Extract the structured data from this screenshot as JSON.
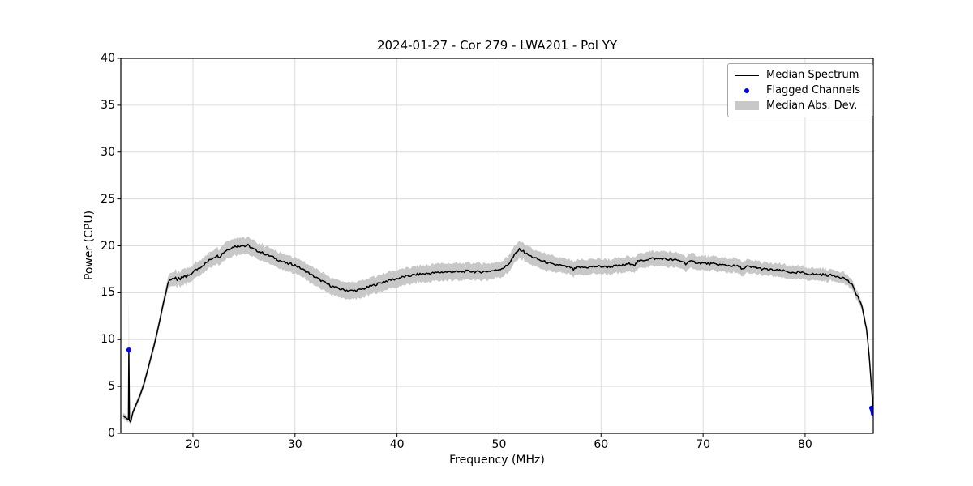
{
  "colors": {
    "line": "#000000",
    "band": "#c8c8c8",
    "flagged": "#0000ff",
    "grid": "#dcdcdc",
    "frame": "#000000",
    "background": "#ffffff",
    "legend_border": "#a6a6a6"
  },
  "chart_data": {
    "type": "line",
    "title": "2024-01-27 - Cor 279 - LWA201 - Pol YY",
    "xlabel": "Frequency (MHz)",
    "ylabel": "Power (CPU)",
    "xlim": [
      12.93,
      86.68
    ],
    "ylim": [
      0,
      40
    ],
    "x_ticks": [
      20,
      30,
      40,
      50,
      60,
      70,
      80
    ],
    "y_ticks": [
      0,
      5,
      10,
      15,
      20,
      25,
      30,
      35,
      40
    ],
    "grid": true,
    "noise_amplitude": 0.13,
    "legend": {
      "position": "upper right",
      "entries": [
        {
          "label": "Median Spectrum",
          "type": "line",
          "color": "#000000"
        },
        {
          "label": "Flagged Channels",
          "type": "dot",
          "color": "#0000ff"
        },
        {
          "label": "Median Abs. Dev.",
          "type": "patch",
          "color": "#c8c8c8"
        }
      ]
    },
    "series": [
      {
        "name": "Median Spectrum",
        "color": "#000000",
        "point_format": [
          "freq_mhz",
          "power_cpu",
          "median_abs_dev"
        ],
        "points": [
          [
            13.15,
            1.9,
            0.3
          ],
          [
            13.3,
            1.75,
            0.3
          ],
          [
            13.45,
            1.65,
            0.3
          ],
          [
            13.6,
            1.5,
            0.3
          ],
          [
            13.68,
            1.45,
            0.3
          ],
          [
            13.72,
            8.8,
            6.5
          ],
          [
            13.78,
            1.35,
            0.3
          ],
          [
            13.9,
            1.2,
            0.3
          ],
          [
            14.1,
            2.2,
            0.35
          ],
          [
            14.4,
            3.0,
            0.35
          ],
          [
            14.8,
            4.0,
            0.4
          ],
          [
            15.2,
            5.3,
            0.4
          ],
          [
            15.6,
            6.9,
            0.45
          ],
          [
            16.0,
            8.6,
            0.45
          ],
          [
            16.2,
            9.4,
            0.5
          ],
          [
            16.5,
            10.8,
            0.5
          ],
          [
            16.8,
            12.3,
            0.5
          ],
          [
            17.1,
            13.9,
            0.55
          ],
          [
            17.35,
            15.0,
            0.6
          ],
          [
            17.55,
            16.0,
            0.65
          ],
          [
            17.7,
            16.35,
            0.7
          ],
          [
            17.85,
            16.45,
            0.75
          ],
          [
            18.0,
            16.55,
            0.75
          ],
          [
            18.15,
            16.3,
            0.75
          ],
          [
            18.3,
            16.6,
            0.8
          ],
          [
            18.45,
            16.35,
            0.8
          ],
          [
            18.6,
            16.65,
            0.8
          ],
          [
            18.75,
            16.45,
            0.8
          ],
          [
            18.9,
            16.7,
            0.8
          ],
          [
            19.05,
            16.5,
            0.8
          ],
          [
            19.2,
            16.75,
            0.8
          ],
          [
            19.35,
            16.6,
            0.8
          ],
          [
            19.5,
            16.85,
            0.8
          ],
          [
            19.7,
            16.8,
            0.8
          ],
          [
            19.85,
            17.0,
            0.8
          ],
          [
            20.0,
            17.25,
            0.8
          ],
          [
            20.4,
            17.5,
            0.8
          ],
          [
            20.8,
            17.8,
            0.8
          ],
          [
            21.2,
            18.1,
            0.8
          ],
          [
            21.6,
            18.45,
            0.85
          ],
          [
            22.0,
            18.75,
            0.85
          ],
          [
            22.3,
            18.95,
            0.85
          ],
          [
            22.6,
            18.85,
            0.85
          ],
          [
            23.0,
            19.3,
            0.9
          ],
          [
            23.3,
            19.55,
            0.9
          ],
          [
            23.6,
            19.7,
            0.9
          ],
          [
            23.9,
            19.85,
            0.9
          ],
          [
            24.2,
            20.0,
            0.9
          ],
          [
            24.5,
            19.95,
            0.9
          ],
          [
            24.8,
            20.1,
            0.9
          ],
          [
            25.1,
            19.95,
            0.9
          ],
          [
            25.4,
            20.05,
            0.9
          ],
          [
            25.7,
            19.8,
            0.9
          ],
          [
            26.0,
            19.6,
            0.9
          ],
          [
            26.4,
            19.45,
            0.9
          ],
          [
            26.8,
            19.25,
            0.9
          ],
          [
            27.2,
            19.05,
            0.85
          ],
          [
            27.6,
            18.9,
            0.85
          ],
          [
            28.0,
            18.7,
            0.85
          ],
          [
            28.4,
            18.5,
            0.85
          ],
          [
            28.8,
            18.3,
            0.85
          ],
          [
            29.2,
            18.1,
            0.85
          ],
          [
            29.6,
            18.05,
            0.85
          ],
          [
            30.0,
            17.95,
            0.85
          ],
          [
            30.4,
            17.7,
            0.85
          ],
          [
            30.8,
            17.45,
            0.85
          ],
          [
            31.2,
            17.2,
            0.85
          ],
          [
            31.6,
            16.9,
            0.9
          ],
          [
            32.0,
            16.65,
            0.9
          ],
          [
            32.4,
            16.4,
            0.9
          ],
          [
            32.8,
            16.15,
            0.9
          ],
          [
            33.2,
            15.9,
            0.9
          ],
          [
            33.6,
            15.7,
            0.9
          ],
          [
            34.0,
            15.55,
            0.9
          ],
          [
            34.4,
            15.4,
            0.9
          ],
          [
            34.8,
            15.3,
            0.9
          ],
          [
            35.2,
            15.25,
            0.9
          ],
          [
            35.6,
            15.2,
            0.9
          ],
          [
            36.0,
            15.25,
            0.9
          ],
          [
            36.4,
            15.3,
            0.9
          ],
          [
            36.8,
            15.45,
            0.9
          ],
          [
            37.2,
            15.6,
            0.9
          ],
          [
            37.6,
            15.75,
            0.9
          ],
          [
            38.0,
            15.9,
            0.9
          ],
          [
            38.4,
            16.05,
            0.9
          ],
          [
            38.8,
            16.2,
            0.9
          ],
          [
            39.2,
            16.3,
            0.9
          ],
          [
            39.6,
            16.4,
            0.9
          ],
          [
            40.0,
            16.5,
            0.9
          ],
          [
            40.5,
            16.65,
            0.9
          ],
          [
            41.0,
            16.75,
            0.9
          ],
          [
            41.5,
            16.85,
            0.9
          ],
          [
            42.0,
            16.95,
            0.9
          ],
          [
            42.5,
            17.0,
            0.9
          ],
          [
            43.0,
            17.05,
            0.9
          ],
          [
            43.5,
            17.1,
            0.9
          ],
          [
            44.0,
            17.15,
            0.9
          ],
          [
            44.5,
            17.2,
            0.9
          ],
          [
            45.0,
            17.2,
            0.9
          ],
          [
            45.5,
            17.25,
            0.9
          ],
          [
            46.0,
            17.2,
            0.9
          ],
          [
            46.5,
            17.25,
            0.9
          ],
          [
            47.0,
            17.3,
            0.9
          ],
          [
            47.5,
            17.25,
            0.9
          ],
          [
            48.0,
            17.2,
            0.9
          ],
          [
            48.5,
            17.25,
            0.9
          ],
          [
            49.0,
            17.3,
            0.9
          ],
          [
            49.5,
            17.35,
            0.85
          ],
          [
            50.0,
            17.5,
            0.85
          ],
          [
            50.4,
            17.65,
            0.85
          ],
          [
            50.8,
            17.9,
            0.85
          ],
          [
            51.1,
            18.3,
            0.9
          ],
          [
            51.4,
            18.8,
            0.9
          ],
          [
            51.7,
            19.3,
            0.9
          ],
          [
            52.0,
            19.6,
            0.9
          ],
          [
            52.3,
            19.5,
            0.9
          ],
          [
            52.6,
            19.2,
            0.9
          ],
          [
            53.0,
            18.95,
            0.9
          ],
          [
            53.4,
            18.75,
            0.85
          ],
          [
            53.8,
            18.55,
            0.85
          ],
          [
            54.2,
            18.4,
            0.85
          ],
          [
            54.6,
            18.25,
            0.85
          ],
          [
            55.0,
            18.1,
            0.85
          ],
          [
            55.4,
            17.95,
            0.85
          ],
          [
            55.8,
            18.0,
            0.8
          ],
          [
            56.2,
            17.85,
            0.8
          ],
          [
            56.6,
            17.75,
            0.8
          ],
          [
            57.0,
            17.7,
            0.8
          ],
          [
            57.3,
            17.45,
            0.8
          ],
          [
            57.6,
            17.65,
            0.8
          ],
          [
            58.0,
            17.7,
            0.8
          ],
          [
            58.5,
            17.7,
            0.8
          ],
          [
            59.0,
            17.75,
            0.8
          ],
          [
            59.5,
            17.8,
            0.8
          ],
          [
            60.0,
            17.8,
            0.8
          ],
          [
            60.5,
            17.75,
            0.8
          ],
          [
            61.0,
            17.8,
            0.8
          ],
          [
            61.5,
            17.85,
            0.8
          ],
          [
            62.0,
            17.9,
            0.8
          ],
          [
            62.5,
            18.0,
            0.8
          ],
          [
            63.0,
            18.15,
            0.8
          ],
          [
            63.3,
            17.95,
            0.8
          ],
          [
            63.6,
            18.3,
            0.8
          ],
          [
            64.0,
            18.45,
            0.8
          ],
          [
            64.5,
            18.55,
            0.8
          ],
          [
            65.0,
            18.65,
            0.8
          ],
          [
            65.5,
            18.6,
            0.8
          ],
          [
            66.0,
            18.65,
            0.8
          ],
          [
            66.5,
            18.55,
            0.8
          ],
          [
            67.0,
            18.5,
            0.8
          ],
          [
            67.5,
            18.45,
            0.8
          ],
          [
            68.0,
            18.35,
            0.8
          ],
          [
            68.3,
            18.1,
            0.8
          ],
          [
            68.6,
            18.3,
            0.8
          ],
          [
            69.0,
            18.3,
            0.8
          ],
          [
            69.5,
            18.2,
            0.75
          ],
          [
            70.0,
            18.15,
            0.75
          ],
          [
            70.5,
            18.1,
            0.75
          ],
          [
            71.0,
            18.05,
            0.75
          ],
          [
            71.5,
            18.0,
            0.75
          ],
          [
            72.0,
            17.95,
            0.75
          ],
          [
            72.5,
            17.9,
            0.75
          ],
          [
            73.0,
            17.85,
            0.75
          ],
          [
            73.5,
            17.8,
            0.75
          ],
          [
            74.0,
            17.5,
            0.75
          ],
          [
            74.3,
            17.8,
            0.75
          ],
          [
            74.7,
            17.7,
            0.75
          ],
          [
            75.0,
            17.7,
            0.7
          ],
          [
            75.5,
            17.6,
            0.7
          ],
          [
            76.0,
            17.5,
            0.7
          ],
          [
            76.5,
            17.45,
            0.7
          ],
          [
            77.0,
            17.4,
            0.7
          ],
          [
            77.5,
            17.35,
            0.7
          ],
          [
            78.0,
            17.3,
            0.7
          ],
          [
            78.5,
            17.2,
            0.7
          ],
          [
            79.0,
            17.0,
            0.7
          ],
          [
            79.3,
            17.2,
            0.7
          ],
          [
            79.7,
            17.1,
            0.7
          ],
          [
            80.0,
            17.05,
            0.65
          ],
          [
            80.5,
            17.0,
            0.65
          ],
          [
            81.0,
            16.95,
            0.65
          ],
          [
            81.5,
            16.95,
            0.65
          ],
          [
            82.0,
            16.9,
            0.65
          ],
          [
            82.5,
            16.85,
            0.6
          ],
          [
            83.0,
            16.8,
            0.6
          ],
          [
            83.4,
            16.7,
            0.6
          ],
          [
            83.8,
            16.55,
            0.6
          ],
          [
            84.2,
            16.25,
            0.55
          ],
          [
            84.6,
            15.8,
            0.55
          ],
          [
            85.0,
            14.9,
            0.5
          ],
          [
            85.2,
            14.5,
            0.5
          ],
          [
            85.4,
            14.0,
            0.45
          ],
          [
            85.6,
            13.3,
            0.45
          ],
          [
            85.8,
            12.4,
            0.4
          ],
          [
            86.0,
            11.2,
            0.4
          ],
          [
            86.15,
            9.8,
            0.35
          ],
          [
            86.3,
            8.0,
            0.35
          ],
          [
            86.4,
            6.5,
            0.3
          ],
          [
            86.5,
            5.0,
            0.3
          ],
          [
            86.6,
            3.5,
            0.3
          ],
          [
            86.68,
            2.2,
            0.3
          ]
        ]
      }
    ],
    "flagged_channels": {
      "name": "Flagged Channels",
      "color": "#0000ff",
      "point_format": [
        "freq_mhz",
        "power_cpu"
      ],
      "points": [
        [
          13.72,
          8.9
        ],
        [
          86.52,
          2.7
        ],
        [
          86.6,
          2.45
        ],
        [
          86.66,
          2.25
        ],
        [
          86.68,
          2.1
        ]
      ]
    }
  }
}
